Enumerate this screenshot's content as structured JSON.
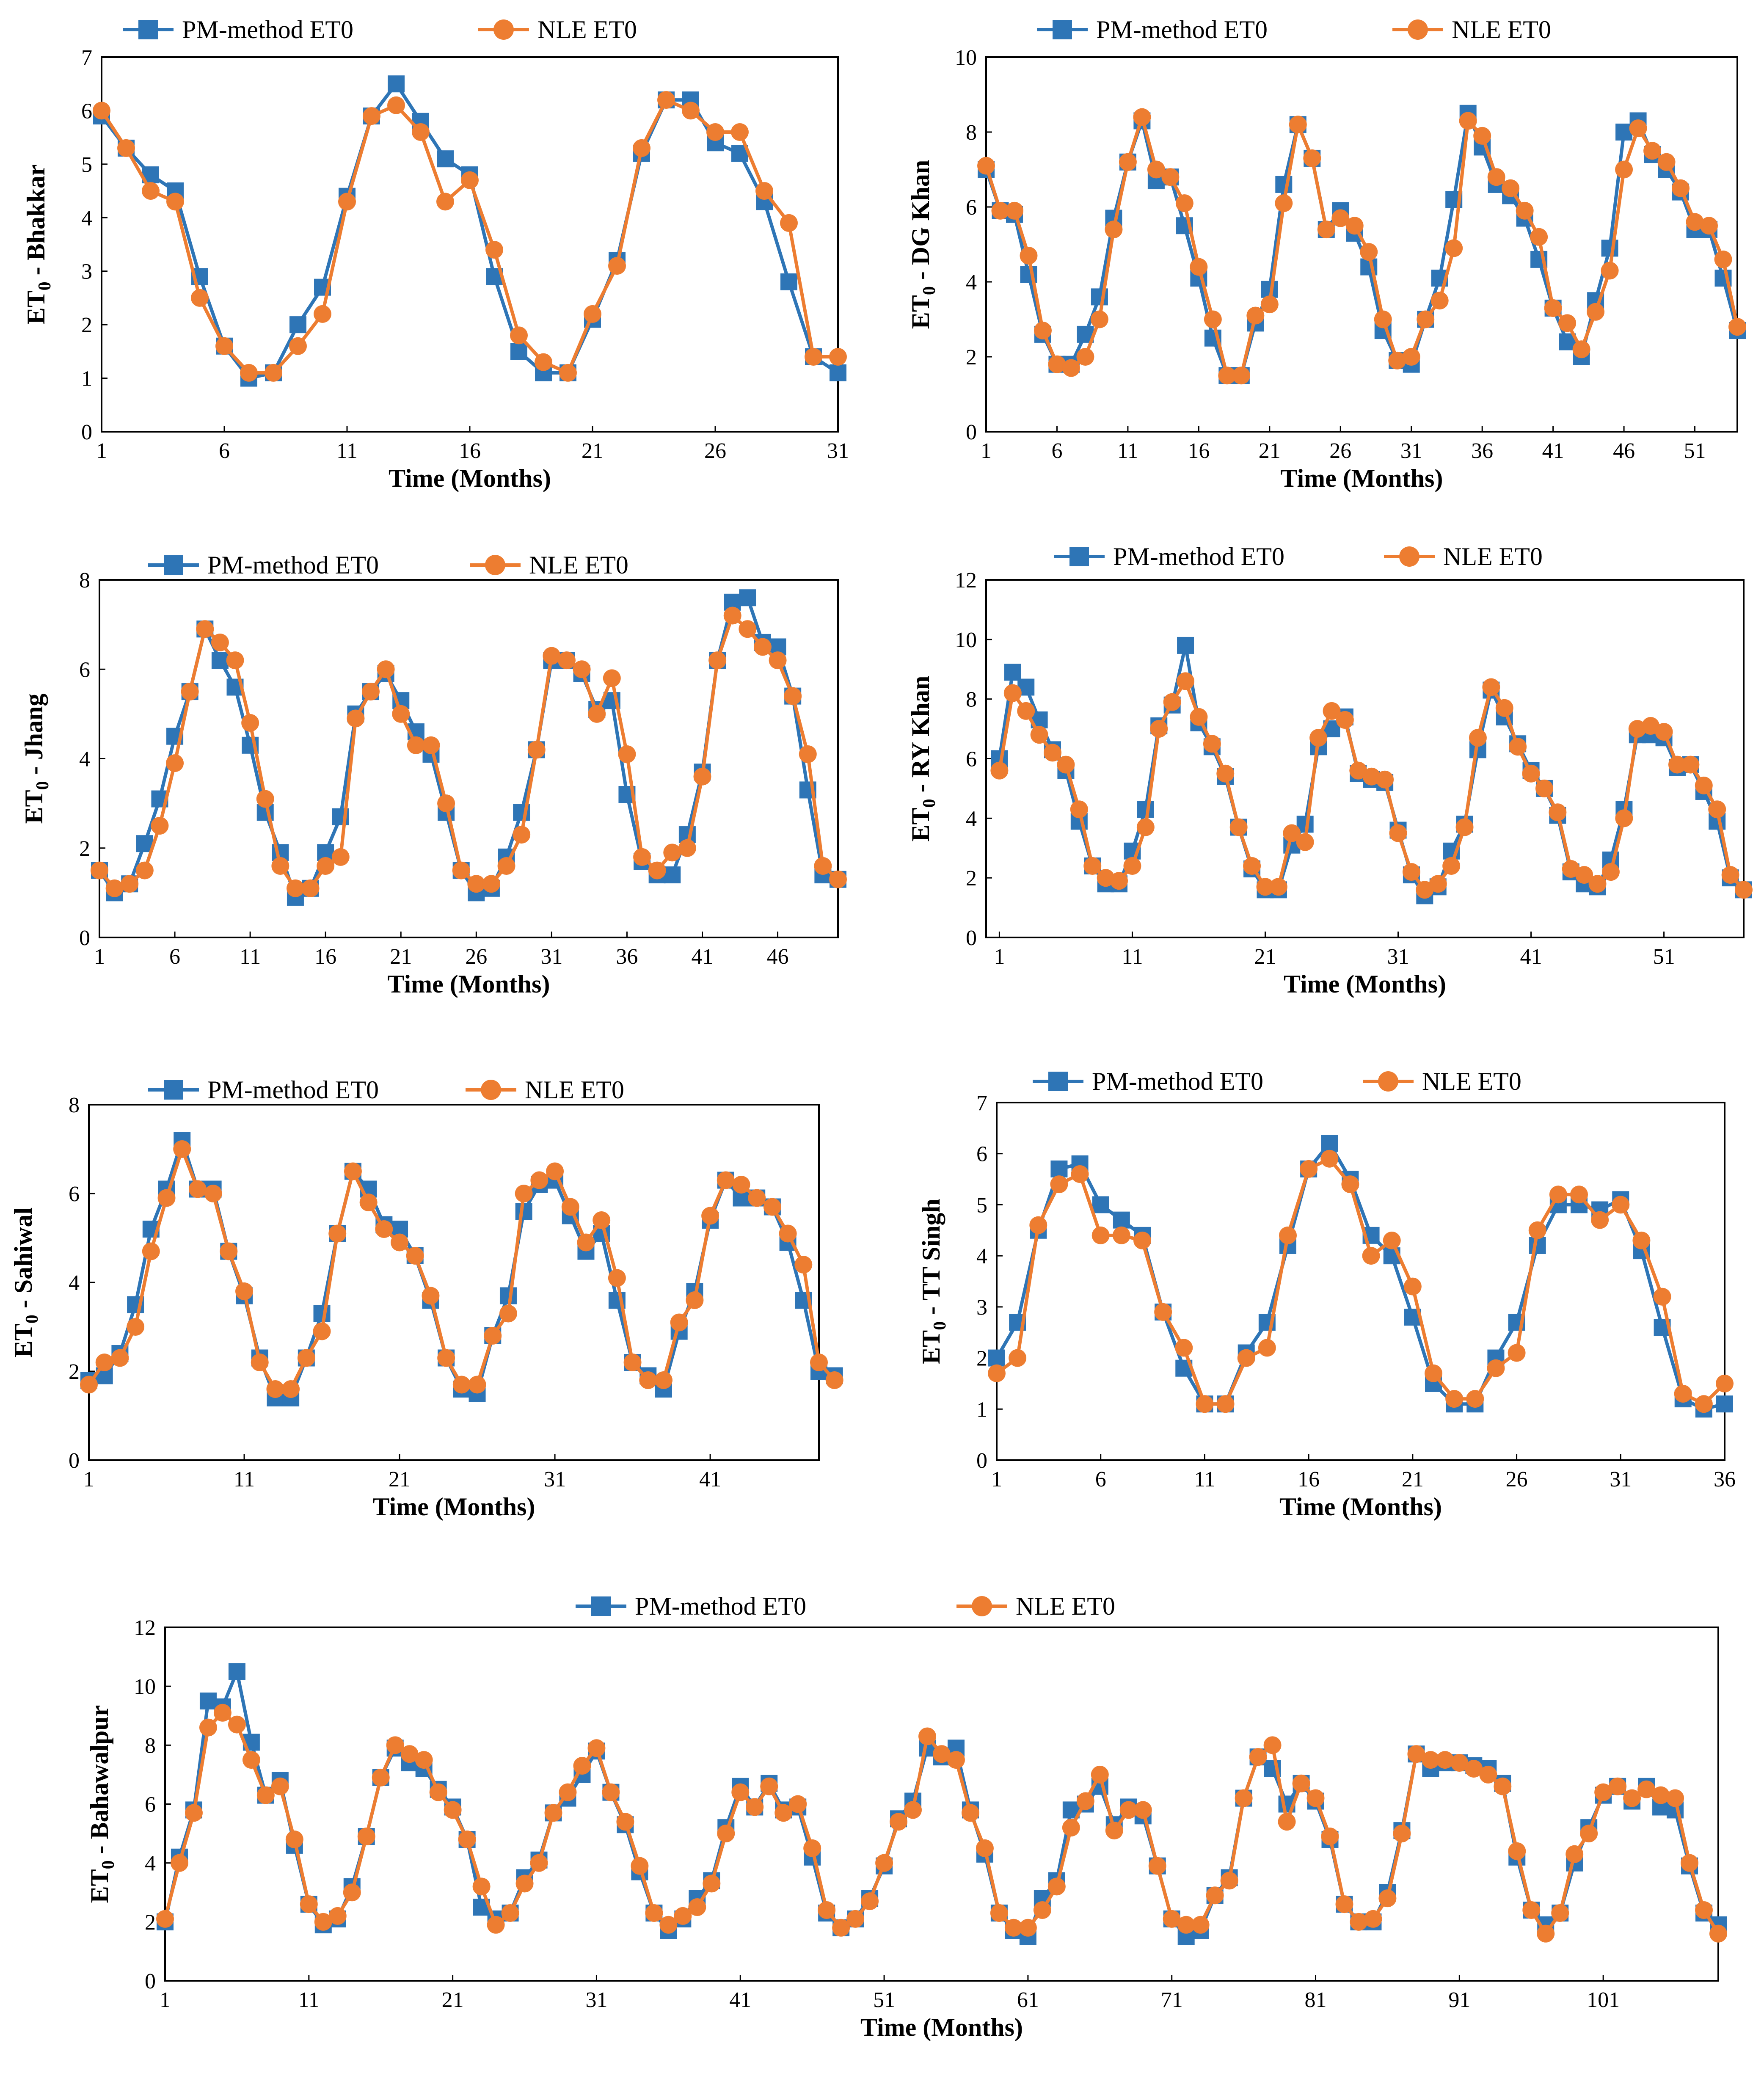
{
  "figure": {
    "colors": {
      "pm": "#2E75B6",
      "nle": "#ED7D31",
      "frame": "#000000"
    },
    "marker_icons": {
      "pm": "square-marker-icon",
      "nle": "circle-marker-icon"
    }
  },
  "chart_data": [
    {
      "type": "line",
      "ylabel_prefix": "ET",
      "ylabel_sub": "0",
      "ylabel_suffix": " - Bhakkar",
      "xlabel": "Time (Months)",
      "ylim": [
        0,
        7
      ],
      "yticks": [
        0,
        1,
        2,
        3,
        4,
        5,
        6,
        7
      ],
      "xlim": [
        1,
        31
      ],
      "xticks": [
        1,
        6,
        11,
        16,
        21,
        26,
        31
      ],
      "series": [
        {
          "name": "PM-method ET0",
          "values": [
            5.9,
            5.3,
            4.8,
            4.5,
            2.9,
            1.6,
            1.0,
            1.1,
            2.0,
            2.7,
            4.4,
            5.9,
            6.5,
            5.8,
            5.1,
            4.8,
            2.9,
            1.5,
            1.1,
            1.1,
            2.1,
            3.2,
            5.2,
            6.2,
            6.2,
            5.4,
            5.2,
            4.3,
            2.8,
            1.4,
            1.1
          ]
        },
        {
          "name": "NLE ET0",
          "values": [
            6.0,
            5.3,
            4.5,
            4.3,
            2.5,
            1.6,
            1.1,
            1.1,
            1.6,
            2.2,
            4.3,
            5.9,
            6.1,
            5.6,
            4.3,
            4.7,
            3.4,
            1.8,
            1.3,
            1.1,
            2.2,
            3.1,
            5.3,
            6.2,
            6.0,
            5.6,
            5.6,
            4.5,
            3.9,
            1.4,
            1.4
          ]
        }
      ]
    },
    {
      "type": "line",
      "ylabel_prefix": "ET",
      "ylabel_sub": "0",
      "ylabel_suffix": " - DG Khan",
      "xlabel": "Time (Months)",
      "ylim": [
        0,
        10
      ],
      "yticks": [
        0,
        2,
        4,
        6,
        8,
        10
      ],
      "xlim": [
        1,
        54
      ],
      "xticks": [
        1,
        6,
        11,
        16,
        21,
        26,
        31,
        36,
        41,
        46,
        51
      ],
      "series": [
        {
          "name": "PM-method ET0",
          "values": [
            7.0,
            5.9,
            5.8,
            4.2,
            2.6,
            1.8,
            1.8,
            2.6,
            3.6,
            5.7,
            7.2,
            8.3,
            6.7,
            6.8,
            5.5,
            4.1,
            2.5,
            1.5,
            1.5,
            2.9,
            3.8,
            6.6,
            8.2,
            7.3,
            5.4,
            5.9,
            5.3,
            4.4,
            2.7,
            1.9,
            1.8,
            3.0,
            4.1,
            6.2,
            8.5,
            7.6,
            6.6,
            6.3,
            5.7,
            4.6,
            3.3,
            2.4,
            2.0,
            3.5,
            4.9,
            8.0,
            8.3,
            7.4,
            7.0,
            6.4,
            5.4,
            5.4,
            4.1,
            2.7
          ]
        },
        {
          "name": "NLE ET0",
          "values": [
            7.1,
            5.9,
            5.9,
            4.7,
            2.7,
            1.8,
            1.7,
            2.0,
            3.0,
            5.4,
            7.2,
            8.4,
            7.0,
            6.8,
            6.1,
            4.4,
            3.0,
            1.5,
            1.5,
            3.1,
            3.4,
            6.1,
            8.2,
            7.3,
            5.4,
            5.7,
            5.5,
            4.8,
            3.0,
            1.9,
            2.0,
            3.0,
            3.5,
            4.9,
            8.3,
            7.9,
            6.8,
            6.5,
            5.9,
            5.2,
            3.3,
            2.9,
            2.2,
            3.2,
            4.3,
            7.0,
            8.1,
            7.5,
            7.2,
            6.5,
            5.6,
            5.5,
            4.6,
            2.8
          ]
        }
      ]
    },
    {
      "type": "line",
      "ylabel_prefix": "ET",
      "ylabel_sub": "0",
      "ylabel_suffix": " - Jhang",
      "xlabel": "Time (Months)",
      "ylim": [
        0,
        8
      ],
      "yticks": [
        0,
        2,
        4,
        6,
        8
      ],
      "xlim": [
        1,
        50
      ],
      "xticks": [
        1,
        6,
        11,
        16,
        21,
        26,
        31,
        36,
        41,
        46
      ],
      "series": [
        {
          "name": "PM-method ET0",
          "values": [
            1.5,
            1.0,
            1.2,
            2.1,
            3.1,
            4.5,
            5.5,
            6.9,
            6.2,
            5.6,
            4.3,
            2.8,
            1.9,
            0.9,
            1.1,
            1.9,
            2.7,
            5.0,
            5.5,
            5.9,
            5.3,
            4.6,
            4.1,
            2.8,
            1.5,
            1.0,
            1.1,
            1.8,
            2.8,
            4.2,
            6.2,
            6.2,
            5.9,
            5.1,
            5.3,
            3.2,
            1.7,
            1.4,
            1.4,
            2.3,
            3.7,
            6.2,
            7.5,
            7.6,
            6.6,
            6.5,
            5.4,
            3.3,
            1.4,
            1.3
          ]
        },
        {
          "name": "NLE ET0",
          "values": [
            1.5,
            1.1,
            1.2,
            1.5,
            2.5,
            3.9,
            5.5,
            6.9,
            6.6,
            6.2,
            4.8,
            3.1,
            1.6,
            1.1,
            1.1,
            1.6,
            1.8,
            4.9,
            5.5,
            6.0,
            5.0,
            4.3,
            4.3,
            3.0,
            1.5,
            1.2,
            1.2,
            1.6,
            2.3,
            4.2,
            6.3,
            6.2,
            6.0,
            5.0,
            5.8,
            4.1,
            1.8,
            1.5,
            1.9,
            2.0,
            3.6,
            6.2,
            7.2,
            6.9,
            6.5,
            6.2,
            5.4,
            4.1,
            1.6,
            1.3
          ]
        }
      ]
    },
    {
      "type": "line",
      "ylabel_prefix": "ET",
      "ylabel_sub": "0",
      "ylabel_suffix": " - RY Khan",
      "xlabel": "Time (Months)",
      "ylim": [
        0,
        12
      ],
      "yticks": [
        0,
        2,
        4,
        6,
        8,
        10,
        12
      ],
      "xlim": [
        0,
        57
      ],
      "xticks": [
        1,
        11,
        21,
        31,
        41,
        51
      ],
      "series": [
        {
          "name": "PM-method ET0",
          "values": [
            6.0,
            8.9,
            8.4,
            7.3,
            6.3,
            5.6,
            3.9,
            2.4,
            1.8,
            1.8,
            2.9,
            4.3,
            7.1,
            7.8,
            9.8,
            7.2,
            6.4,
            5.4,
            3.7,
            2.3,
            1.6,
            1.6,
            3.1,
            3.8,
            6.4,
            7.0,
            7.4,
            5.5,
            5.3,
            5.2,
            3.6,
            2.1,
            1.4,
            1.7,
            2.9,
            3.8,
            6.3,
            8.3,
            7.4,
            6.5,
            5.6,
            5.0,
            4.1,
            2.2,
            1.8,
            1.7,
            2.6,
            4.3,
            6.8,
            6.8,
            6.7,
            5.7,
            5.8,
            4.9,
            3.9,
            2.0,
            1.6
          ]
        },
        {
          "name": "NLE ET0",
          "values": [
            5.6,
            8.2,
            7.6,
            6.8,
            6.2,
            5.8,
            4.3,
            2.4,
            2.0,
            1.9,
            2.4,
            3.7,
            7.0,
            7.9,
            8.6,
            7.4,
            6.5,
            5.5,
            3.7,
            2.4,
            1.7,
            1.7,
            3.5,
            3.2,
            6.7,
            7.6,
            7.3,
            5.6,
            5.4,
            5.3,
            3.5,
            2.2,
            1.6,
            1.8,
            2.4,
            3.7,
            6.7,
            8.4,
            7.7,
            6.4,
            5.5,
            5.0,
            4.2,
            2.3,
            2.1,
            1.8,
            2.2,
            4.0,
            7.0,
            7.1,
            6.9,
            5.8,
            5.8,
            5.1,
            4.3,
            2.1,
            1.6
          ]
        }
      ]
    },
    {
      "type": "line",
      "ylabel_prefix": "ET",
      "ylabel_sub": "0",
      "ylabel_suffix": " - Sahiwal",
      "xlabel": "Time (Months)",
      "ylim": [
        0,
        8
      ],
      "yticks": [
        0,
        2,
        4,
        6,
        8
      ],
      "xlim": [
        1,
        48
      ],
      "xticks": [
        1,
        11,
        21,
        31,
        41
      ],
      "series": [
        {
          "name": "PM-method ET0",
          "values": [
            1.8,
            1.9,
            2.4,
            3.5,
            5.2,
            6.1,
            7.2,
            6.1,
            6.1,
            4.7,
            3.7,
            2.3,
            1.4,
            1.4,
            2.3,
            3.3,
            5.1,
            6.5,
            6.1,
            5.3,
            5.2,
            4.6,
            3.6,
            2.3,
            1.6,
            1.5,
            2.8,
            3.7,
            5.6,
            6.2,
            6.3,
            5.5,
            4.7,
            5.1,
            3.6,
            2.2,
            1.9,
            1.6,
            2.9,
            3.8,
            5.4,
            6.3,
            5.9,
            5.9,
            5.7,
            4.9,
            3.6,
            2.0,
            1.9
          ]
        },
        {
          "name": "NLE ET0",
          "values": [
            1.7,
            2.2,
            2.3,
            3.0,
            4.7,
            5.9,
            7.0,
            6.1,
            6.0,
            4.7,
            3.8,
            2.2,
            1.6,
            1.6,
            2.3,
            2.9,
            5.1,
            6.5,
            5.8,
            5.2,
            4.9,
            4.6,
            3.7,
            2.3,
            1.7,
            1.7,
            2.8,
            3.3,
            6.0,
            6.3,
            6.5,
            5.7,
            4.9,
            5.4,
            4.1,
            2.2,
            1.8,
            1.8,
            3.1,
            3.6,
            5.5,
            6.3,
            6.2,
            5.9,
            5.7,
            5.1,
            4.4,
            2.2,
            1.8
          ]
        }
      ]
    },
    {
      "type": "line",
      "ylabel_prefix": "ET",
      "ylabel_sub": "0",
      "ylabel_suffix": " - TT Singh",
      "xlabel": "Time (Months)",
      "ylim": [
        0,
        7
      ],
      "yticks": [
        0,
        1,
        2,
        3,
        4,
        5,
        6,
        7
      ],
      "xlim": [
        1,
        36
      ],
      "xticks": [
        1,
        6,
        11,
        16,
        21,
        26,
        31,
        36
      ],
      "series": [
        {
          "name": "PM-method ET0",
          "values": [
            2.0,
            2.7,
            4.5,
            5.7,
            5.8,
            5.0,
            4.7,
            4.4,
            2.9,
            1.8,
            1.1,
            1.1,
            2.1,
            2.7,
            4.2,
            5.7,
            6.2,
            5.5,
            4.4,
            4.0,
            2.8,
            1.5,
            1.1,
            1.1,
            2.0,
            2.7,
            4.2,
            5.0,
            5.0,
            4.9,
            5.1,
            4.1,
            2.6,
            1.2,
            1.0,
            1.1
          ]
        },
        {
          "name": "NLE ET0",
          "values": [
            1.7,
            2.0,
            4.6,
            5.4,
            5.6,
            4.4,
            4.4,
            4.3,
            2.9,
            2.2,
            1.1,
            1.1,
            2.0,
            2.2,
            4.4,
            5.7,
            5.9,
            5.4,
            4.0,
            4.3,
            3.4,
            1.7,
            1.2,
            1.2,
            1.8,
            2.1,
            4.5,
            5.2,
            5.2,
            4.7,
            5.0,
            4.3,
            3.2,
            1.3,
            1.1,
            1.5
          ]
        }
      ]
    },
    {
      "type": "line",
      "ylabel_prefix": "ET",
      "ylabel_sub": "0",
      "ylabel_suffix": " - Bahawalpur",
      "xlabel": "Time (Months)",
      "ylim": [
        0,
        12
      ],
      "yticks": [
        0,
        2,
        4,
        6,
        8,
        10,
        12
      ],
      "xlim": [
        1,
        109
      ],
      "xticks": [
        1,
        11,
        21,
        31,
        41,
        51,
        61,
        71,
        81,
        91,
        101
      ],
      "series": [
        {
          "name": "PM-method ET0",
          "values": [
            2.0,
            4.2,
            5.8,
            9.5,
            9.3,
            10.5,
            8.1,
            6.3,
            6.8,
            4.6,
            2.6,
            1.9,
            2.1,
            3.2,
            4.9,
            6.9,
            7.9,
            7.4,
            7.2,
            6.5,
            5.9,
            4.8,
            2.5,
            2.1,
            2.3,
            3.5,
            4.1,
            5.7,
            6.2,
            7.0,
            7.8,
            6.4,
            5.3,
            3.7,
            2.3,
            1.7,
            2.1,
            2.8,
            3.4,
            5.2,
            6.6,
            5.9,
            6.7,
            5.8,
            5.9,
            4.2,
            2.3,
            1.8,
            2.1,
            2.8,
            3.9,
            5.5,
            6.1,
            7.9,
            7.6,
            7.9,
            5.8,
            4.3,
            2.3,
            1.7,
            1.5,
            2.8,
            3.4,
            5.8,
            6.0,
            6.6,
            5.3,
            5.9,
            5.6,
            3.9,
            2.1,
            1.5,
            1.7,
            2.9,
            3.5,
            6.2,
            7.6,
            7.2,
            6.0,
            6.7,
            6.1,
            4.8,
            2.6,
            2.0,
            2.0,
            3.0,
            5.1,
            7.7,
            7.2,
            7.4,
            7.4,
            7.3,
            7.2,
            6.7,
            4.2,
            2.4,
            1.9,
            2.3,
            4.0,
            5.2,
            6.3,
            6.6,
            6.1,
            6.6,
            5.9,
            5.8,
            3.9,
            2.3,
            1.9
          ]
        },
        {
          "name": "NLE ET0",
          "values": [
            2.1,
            4.0,
            5.7,
            8.6,
            9.1,
            8.7,
            7.5,
            6.3,
            6.6,
            4.8,
            2.6,
            2.0,
            2.2,
            3.0,
            4.9,
            6.9,
            8.0,
            7.7,
            7.5,
            6.4,
            5.8,
            4.8,
            3.2,
            1.9,
            2.3,
            3.3,
            4.0,
            5.7,
            6.4,
            7.3,
            7.9,
            6.4,
            5.4,
            3.9,
            2.3,
            1.9,
            2.2,
            2.5,
            3.3,
            5.0,
            6.4,
            5.9,
            6.6,
            5.7,
            6.0,
            4.5,
            2.4,
            1.8,
            2.1,
            2.7,
            4.0,
            5.4,
            5.8,
            8.3,
            7.7,
            7.5,
            5.7,
            4.5,
            2.3,
            1.8,
            1.8,
            2.4,
            3.2,
            5.2,
            6.1,
            7.0,
            5.1,
            5.8,
            5.8,
            3.9,
            2.1,
            1.9,
            1.9,
            2.9,
            3.4,
            6.2,
            7.6,
            8.0,
            5.4,
            6.7,
            6.2,
            4.9,
            2.6,
            2.0,
            2.1,
            2.8,
            5.0,
            7.7,
            7.5,
            7.5,
            7.4,
            7.2,
            7.0,
            6.6,
            4.4,
            2.4,
            1.6,
            2.3,
            4.3,
            5.0,
            6.4,
            6.6,
            6.2,
            6.5,
            6.3,
            6.2,
            4.0,
            2.4,
            1.6
          ]
        }
      ]
    }
  ]
}
